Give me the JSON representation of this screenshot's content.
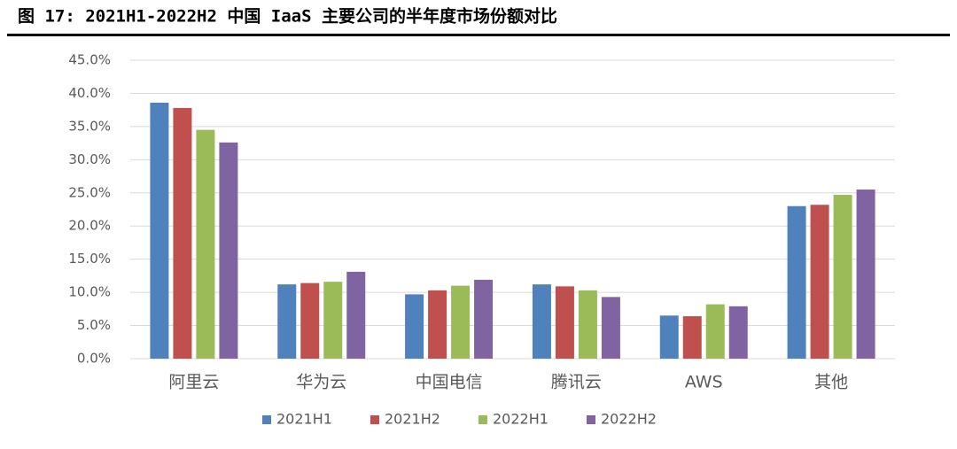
{
  "chart_data": {
    "type": "bar",
    "title": "图 17: 2021H1-2022H2 中国 IaaS 主要公司的半年度市场份额对比",
    "categories": [
      "阿里云",
      "华为云",
      "中国电信",
      "腾讯云",
      "AWS",
      "其他"
    ],
    "series": [
      {
        "name": "2021H1",
        "color": "#4f81bd",
        "values": [
          38.6,
          11.2,
          9.7,
          11.2,
          6.5,
          23.0
        ]
      },
      {
        "name": "2021H2",
        "color": "#c0504d",
        "values": [
          37.8,
          11.4,
          10.3,
          10.9,
          6.4,
          23.2
        ]
      },
      {
        "name": "2022H1",
        "color": "#9bbb59",
        "values": [
          34.5,
          11.6,
          11.0,
          10.3,
          8.2,
          24.7
        ]
      },
      {
        "name": "2022H2",
        "color": "#8064a2",
        "values": [
          32.6,
          13.1,
          11.9,
          9.3,
          7.9,
          25.5
        ]
      }
    ],
    "ylim": [
      0,
      45
    ],
    "yticks": [
      {
        "value": 0,
        "label": "0.0%"
      },
      {
        "value": 5,
        "label": "5.0%"
      },
      {
        "value": 10,
        "label": "10.0%"
      },
      {
        "value": 15,
        "label": "15.0%"
      },
      {
        "value": 20,
        "label": "20.0%"
      },
      {
        "value": 25,
        "label": "25.0%"
      },
      {
        "value": 30,
        "label": "30.0%"
      },
      {
        "value": 35,
        "label": "35.0%"
      },
      {
        "value": 40,
        "label": "40.0%"
      },
      {
        "value": 45,
        "label": "45.0%"
      }
    ],
    "grid": true,
    "legend": "bottom"
  }
}
